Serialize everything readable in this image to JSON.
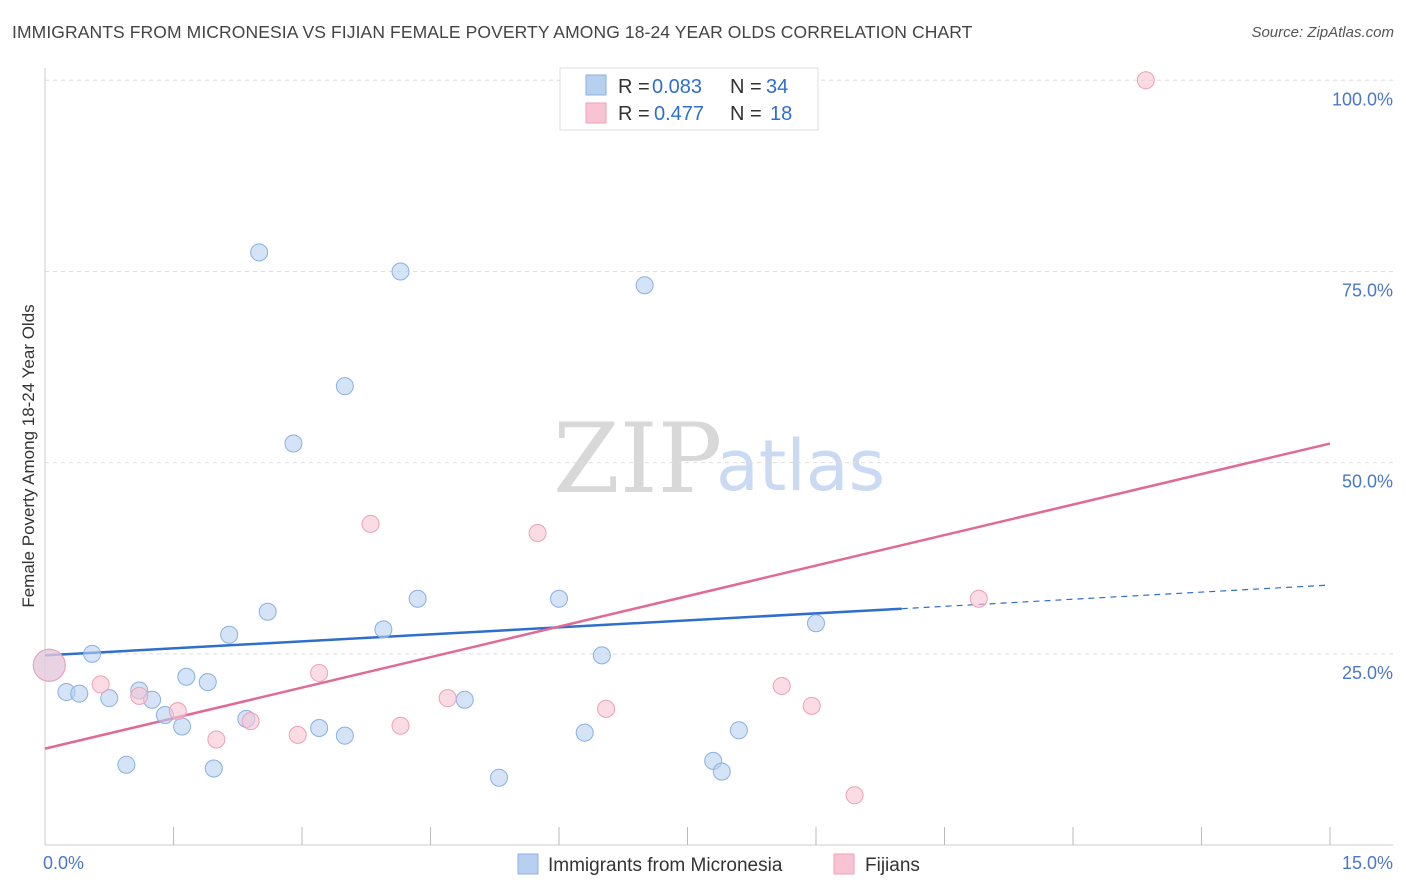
{
  "title": "IMMIGRANTS FROM MICRONESIA VS FIJIAN FEMALE POVERTY AMONG 18-24 YEAR OLDS CORRELATION CHART",
  "source": "Source: ZipAtlas.com",
  "watermark": {
    "zip": "ZIP",
    "atlas": "atlas"
  },
  "colors": {
    "blue_fill": "#b8d0f0",
    "blue_stroke": "#8ab0e0",
    "blue_line": "#2f6fcc",
    "pink_fill": "#f8c4d4",
    "pink_stroke": "#ee9fb8",
    "pink_line": "#e06a96",
    "grid": "#dddddd",
    "tick_text": "#4a78c8"
  },
  "legend": {
    "r_label": "R =",
    "n_label": "N =",
    "entries": [
      {
        "series": "Immigrants from Micronesia",
        "r": "0.083",
        "n": "34"
      },
      {
        "series": "Fijians",
        "r": "0.477",
        "n": "18"
      }
    ]
  },
  "chart_data": {
    "type": "scatter",
    "title": "IMMIGRANTS FROM MICRONESIA VS FIJIAN FEMALE POVERTY AMONG 18-24 YEAR OLDS CORRELATION CHART",
    "xlabel": "",
    "ylabel": "Female Poverty Among 18-24 Year Olds",
    "xlim": [
      0,
      15
    ],
    "ylim": [
      0,
      102
    ],
    "x_tick_labels": [
      {
        "value": 0,
        "label": "0.0%"
      },
      {
        "value": 15,
        "label": "15.0%"
      }
    ],
    "x_minor_ticks": [
      1.5,
      3,
      4.5,
      6,
      7.5,
      9,
      10.5,
      12,
      13.5,
      15
    ],
    "y_ticks": [
      {
        "value": 25,
        "label": "25.0%"
      },
      {
        "value": 50,
        "label": "50.0%"
      },
      {
        "value": 75,
        "label": "75.0%"
      },
      {
        "value": 100,
        "label": "100.0%"
      }
    ],
    "series": [
      {
        "name": "Immigrants from Micronesia",
        "color": "blue",
        "points": [
          [
            0.05,
            23.5,
            "large"
          ],
          [
            0.25,
            20.0
          ],
          [
            0.4,
            19.8
          ],
          [
            0.55,
            25.0
          ],
          [
            0.75,
            19.2
          ],
          [
            0.95,
            10.5
          ],
          [
            1.1,
            20.2
          ],
          [
            1.25,
            19.0
          ],
          [
            1.4,
            17.0
          ],
          [
            1.6,
            15.5
          ],
          [
            1.65,
            22.0
          ],
          [
            1.9,
            21.3
          ],
          [
            1.97,
            10.0
          ],
          [
            2.15,
            27.5
          ],
          [
            2.35,
            16.5
          ],
          [
            2.5,
            77.5
          ],
          [
            2.6,
            30.5
          ],
          [
            2.9,
            52.5
          ],
          [
            3.2,
            15.3
          ],
          [
            3.5,
            14.3
          ],
          [
            3.5,
            60.0
          ],
          [
            3.95,
            28.2
          ],
          [
            4.15,
            75.0
          ],
          [
            4.35,
            32.2
          ],
          [
            4.9,
            19.0
          ],
          [
            5.3,
            8.8
          ],
          [
            6.0,
            32.2
          ],
          [
            6.3,
            14.7
          ],
          [
            6.5,
            24.8
          ],
          [
            7.0,
            73.2
          ],
          [
            7.8,
            11.0
          ],
          [
            7.9,
            9.6
          ],
          [
            8.1,
            15.0
          ],
          [
            9.0,
            29.0
          ]
        ]
      },
      {
        "name": "Fijians",
        "color": "pink",
        "points": [
          [
            0.05,
            23.5,
            "large"
          ],
          [
            0.65,
            21.0
          ],
          [
            1.1,
            19.5
          ],
          [
            1.55,
            17.5
          ],
          [
            2.0,
            13.8
          ],
          [
            2.4,
            16.2
          ],
          [
            2.95,
            14.4
          ],
          [
            3.2,
            22.5
          ],
          [
            3.8,
            42.0
          ],
          [
            4.15,
            15.6
          ],
          [
            4.7,
            19.2
          ],
          [
            5.75,
            40.8
          ],
          [
            6.55,
            17.8
          ],
          [
            8.6,
            20.8
          ],
          [
            8.95,
            18.2
          ],
          [
            9.45,
            6.5
          ],
          [
            10.9,
            32.2
          ],
          [
            12.85,
            100.0
          ]
        ]
      }
    ],
    "trendlines": [
      {
        "series": "Immigrants from Micronesia",
        "x0": 0,
        "y0": 24.8,
        "x1": 10.0,
        "y1": 30.9,
        "dashed_to_x": 15,
        "dashed_to_y": 34.0
      },
      {
        "series": "Fijians",
        "x0": 0,
        "y0": 12.6,
        "x1": 15,
        "y1": 52.5
      }
    ]
  }
}
